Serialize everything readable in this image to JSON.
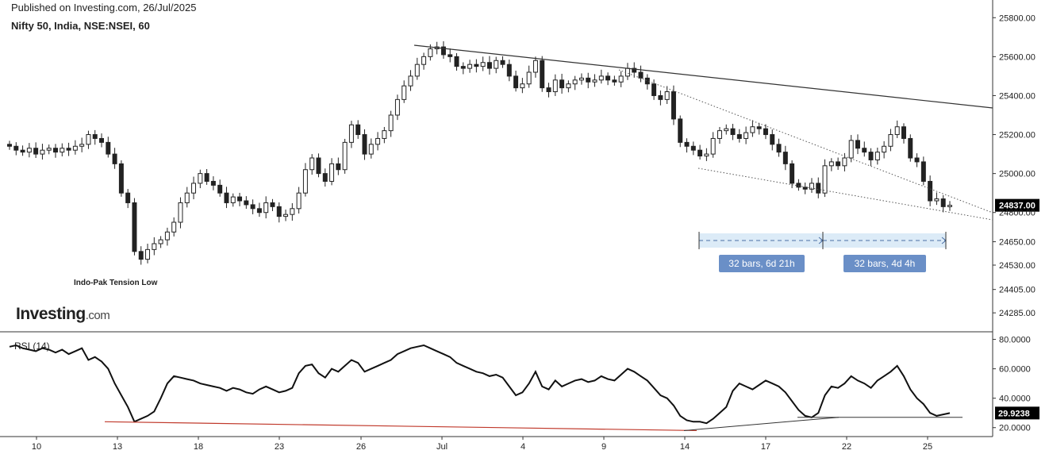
{
  "header": {
    "published": "Published on Investing.com, 26/Jul/2025",
    "symbol": "Nifty 50, India, NSE:NSEI, 60"
  },
  "logo": {
    "brand": "Investing",
    "suffix": ".com"
  },
  "colors": {
    "axis": "#333333",
    "candle": "#222222",
    "rsi_line": "#111111",
    "support": "#c0392b",
    "measure_fill": "#dcebf7",
    "measure_label": "#6a8fc7",
    "price_tag": "#000000"
  },
  "chart_data": [
    {
      "type": "candlestick",
      "title": "Nifty 50, India, NSE:NSEI, 60",
      "ylim": [
        24200,
        25850
      ],
      "y_ticks": [
        "25800.00",
        "25600.00",
        "25400.00",
        "25200.00",
        "25000.00",
        "24800.00",
        "24650.00",
        "24530.00",
        "24405.00",
        "24285.00"
      ],
      "last_price": "24837.00",
      "annotation": "Indo-Pak Tension Low",
      "closes": [
        25140,
        25120,
        25110,
        25130,
        25100,
        25120,
        25130,
        25110,
        25130,
        25120,
        25140,
        25150,
        25200,
        25180,
        25160,
        25100,
        25050,
        24900,
        24850,
        24600,
        24560,
        24610,
        24640,
        24660,
        24700,
        24750,
        24850,
        24900,
        24950,
        25000,
        24960,
        24940,
        24900,
        24850,
        24880,
        24860,
        24840,
        24820,
        24800,
        24850,
        24830,
        24780,
        24790,
        24820,
        24900,
        25020,
        25080,
        25000,
        24960,
        25050,
        25020,
        25160,
        25250,
        25200,
        25100,
        25150,
        25180,
        25220,
        25300,
        25380,
        25450,
        25500,
        25560,
        25600,
        25640,
        25650,
        25610,
        25600,
        25550,
        25540,
        25560,
        25550,
        25570,
        25540,
        25580,
        25560,
        25500,
        25440,
        25460,
        25520,
        25580,
        25440,
        25420,
        25480,
        25440,
        25460,
        25480,
        25490,
        25470,
        25480,
        25500,
        25480,
        25470,
        25500,
        25540,
        25520,
        25490,
        25460,
        25400,
        25380,
        25420,
        25280,
        25160,
        25140,
        25120,
        25090,
        25100,
        25180,
        25220,
        25230,
        25200,
        25180,
        25210,
        25240,
        25230,
        25200,
        25150,
        25110,
        25050,
        24950,
        24930,
        24920,
        24950,
        24900,
        25040,
        25060,
        25040,
        25080,
        25170,
        25130,
        25110,
        25070,
        25110,
        25140,
        25200,
        25240,
        25180,
        25080,
        25060,
        24960,
        24860,
        24870,
        24830,
        24837
      ]
    },
    {
      "type": "line",
      "title": "RSI (14)",
      "ylim": [
        15,
        83
      ],
      "y_ticks": [
        "80.0000",
        "60.0000",
        "40.0000",
        "20.0000"
      ],
      "last_value": "29.9238",
      "values": [
        75,
        76,
        74,
        73,
        72,
        74,
        73,
        71,
        73,
        70,
        72,
        74,
        66,
        68,
        65,
        60,
        50,
        42,
        34,
        24,
        26,
        28,
        31,
        40,
        50,
        55,
        54,
        53,
        52,
        50,
        49,
        48,
        47,
        45,
        47,
        46,
        44,
        43,
        46,
        48,
        46,
        44,
        45,
        47,
        57,
        62,
        63,
        57,
        54,
        60,
        58,
        62,
        66,
        64,
        58,
        60,
        62,
        64,
        66,
        70,
        72,
        74,
        75,
        76,
        74,
        72,
        70,
        68,
        64,
        62,
        60,
        58,
        57,
        55,
        56,
        54,
        48,
        42,
        44,
        50,
        58,
        48,
        46,
        52,
        48,
        50,
        52,
        53,
        51,
        52,
        55,
        53,
        52,
        56,
        60,
        58,
        55,
        52,
        47,
        42,
        40,
        35,
        28,
        25,
        24,
        24,
        23,
        26,
        30,
        34,
        45,
        50,
        48,
        46,
        49,
        52,
        50,
        48,
        44,
        38,
        32,
        28,
        27,
        30,
        42,
        48,
        47,
        50,
        55,
        52,
        50,
        47,
        52,
        55,
        58,
        62,
        55,
        46,
        40,
        36,
        30,
        28,
        29,
        29.92
      ]
    }
  ],
  "x_ticks": [
    "10",
    "13",
    "18",
    "23",
    "26",
    "Jul",
    "4",
    "9",
    "14",
    "17",
    "22",
    "25"
  ],
  "measures": [
    "32 bars, 6d 21h",
    "32 bars, 4d 4h"
  ]
}
